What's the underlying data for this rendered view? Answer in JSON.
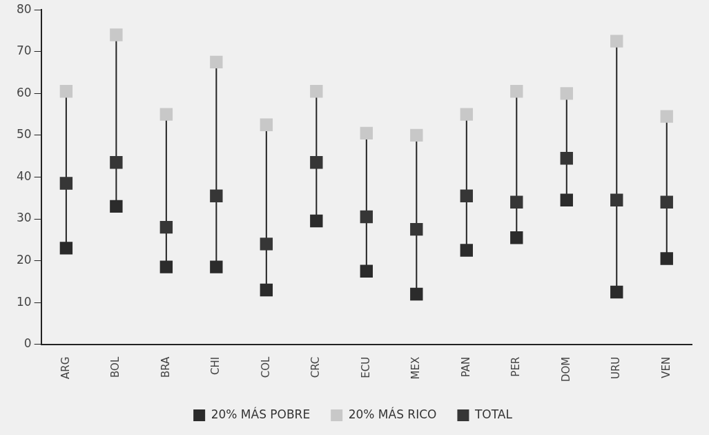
{
  "chart_data": {
    "type": "scatter",
    "categories": [
      "ARG",
      "BOL",
      "BRA",
      "CHI",
      "COL",
      "CRC",
      "ECU",
      "MEX",
      "PAN",
      "PER",
      "DOM",
      "URU",
      "VEN"
    ],
    "series": [
      {
        "name": "20% MÁS POBRE",
        "color": "#2b2b2b",
        "values": [
          23,
          33,
          18.5,
          18.5,
          13,
          29.5,
          17.5,
          12,
          22.5,
          25.5,
          34.5,
          12.5,
          20.5
        ]
      },
      {
        "name": "20% MÁS RICO",
        "color": "#c8c8c8",
        "values": [
          60.5,
          74,
          55,
          67.5,
          52.5,
          60.5,
          50.5,
          50,
          55,
          60.5,
          60,
          72.5,
          54.5
        ]
      },
      {
        "name": "TOTAL",
        "color": "#363636",
        "values": [
          38.5,
          43.5,
          28,
          35.5,
          24,
          43.5,
          30.5,
          27.5,
          35.5,
          34,
          44.5,
          34.5,
          34
        ]
      }
    ],
    "ylim": [
      0,
      80
    ],
    "yticks": [
      0,
      10,
      20,
      30,
      40,
      50,
      60,
      70,
      80
    ],
    "marker": "square",
    "legend": "bottom"
  }
}
